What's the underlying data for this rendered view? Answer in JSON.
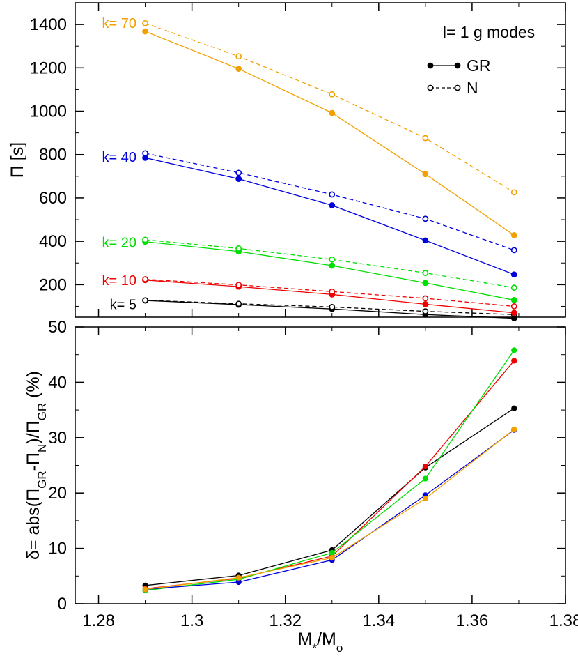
{
  "chart_data": [
    {
      "type": "line",
      "panel": "top",
      "title": "",
      "xlabel": "",
      "ylabel": "Π [s]",
      "xlim": [
        1.275,
        1.38
      ],
      "ylim": [
        50,
        1500
      ],
      "grid": false,
      "x": [
        1.29,
        1.31,
        1.33,
        1.35,
        1.369
      ],
      "yticks": [
        200,
        400,
        600,
        800,
        1000,
        1200,
        1400
      ],
      "ytick_labels": [
        "200",
        "400",
        "600",
        "800",
        "1000",
        "1200",
        "1400"
      ],
      "legend": {
        "title": "l= 1 g modes",
        "position": "top-right",
        "entries": [
          {
            "label": "GR",
            "style": "solid",
            "marker": "filled-circle"
          },
          {
            "label": "N",
            "style": "dashed",
            "marker": "open-circle"
          }
        ]
      },
      "series": [
        {
          "k": 5,
          "name": "GR k=5",
          "style": "GR",
          "color": "#000000",
          "values": [
            127,
            108,
            88,
            62,
            45
          ]
        },
        {
          "k": 5,
          "name": "N k=5",
          "style": "N",
          "color": "#000000",
          "values": [
            128,
            112,
            97,
            77,
            62
          ]
        },
        {
          "k": 10,
          "name": "GR k=10",
          "style": "GR",
          "color": "#ee0000",
          "values": [
            221,
            191,
            155,
            110,
            70
          ]
        },
        {
          "k": 10,
          "name": "N k=10",
          "style": "N",
          "color": "#ee0000",
          "values": [
            225,
            199,
            168,
            137,
            100
          ]
        },
        {
          "k": 20,
          "name": "GR k=20",
          "style": "GR",
          "color": "#00dd00",
          "values": [
            398,
            353,
            288,
            208,
            129
          ]
        },
        {
          "k": 20,
          "name": "N k=20",
          "style": "N",
          "color": "#00dd00",
          "values": [
            407,
            367,
            316,
            254,
            186
          ]
        },
        {
          "k": 40,
          "name": "GR k=40",
          "style": "GR",
          "color": "#0000dd",
          "values": [
            785,
            688,
            566,
            404,
            247
          ]
        },
        {
          "k": 40,
          "name": "N k=40",
          "style": "N",
          "color": "#0000dd",
          "values": [
            806,
            716,
            616,
            504,
            359
          ]
        },
        {
          "k": 70,
          "name": "GR k=70",
          "style": "GR",
          "color": "#f2a000",
          "values": [
            1368,
            1196,
            992,
            710,
            428
          ]
        },
        {
          "k": 70,
          "name": "N k=70",
          "style": "N",
          "color": "#f2a000",
          "values": [
            1406,
            1253,
            1078,
            876,
            626
          ]
        }
      ],
      "annotations": [
        {
          "text": "k= 70",
          "color": "#f2a000"
        },
        {
          "text": "k= 40",
          "color": "#0000dd"
        },
        {
          "text": "k= 20",
          "color": "#00dd00"
        },
        {
          "text": "k= 10",
          "color": "#ee0000"
        },
        {
          "text": "k= 5",
          "color": "#000000"
        }
      ]
    },
    {
      "type": "line",
      "panel": "bottom",
      "title": "",
      "xlabel": "M*/Mo",
      "ylabel": "δ= abs(ΠGR-ΠN)/ΠGR (%)",
      "xlim": [
        1.275,
        1.38
      ],
      "ylim": [
        0,
        50
      ],
      "grid": false,
      "x": [
        1.29,
        1.31,
        1.33,
        1.35,
        1.369
      ],
      "xticks": [
        1.28,
        1.3,
        1.32,
        1.34,
        1.36,
        1.38
      ],
      "xtick_labels": [
        "1.28",
        "1.3",
        "1.32",
        "1.34",
        "1.36",
        "1.38"
      ],
      "yticks": [
        0,
        10,
        20,
        30,
        40,
        50
      ],
      "ytick_labels": [
        "0",
        "10",
        "20",
        "30",
        "40",
        "50"
      ],
      "series": [
        {
          "name": "k=5",
          "color": "#000000",
          "values": [
            3.3,
            5.1,
            9.7,
            24.6,
            35.3
          ]
        },
        {
          "name": "k=10",
          "color": "#ee0000",
          "values": [
            2.7,
            4.6,
            8.6,
            24.8,
            43.9
          ]
        },
        {
          "name": "k=20",
          "color": "#00dd00",
          "values": [
            2.4,
            4.4,
            9.2,
            22.6,
            45.8
          ]
        },
        {
          "name": "k=40",
          "color": "#0000dd",
          "values": [
            2.6,
            3.9,
            7.9,
            19.6,
            31.4
          ]
        },
        {
          "name": "k=70",
          "color": "#f2a000",
          "values": [
            2.6,
            4.7,
            8.3,
            19.0,
            31.5
          ]
        }
      ]
    }
  ]
}
